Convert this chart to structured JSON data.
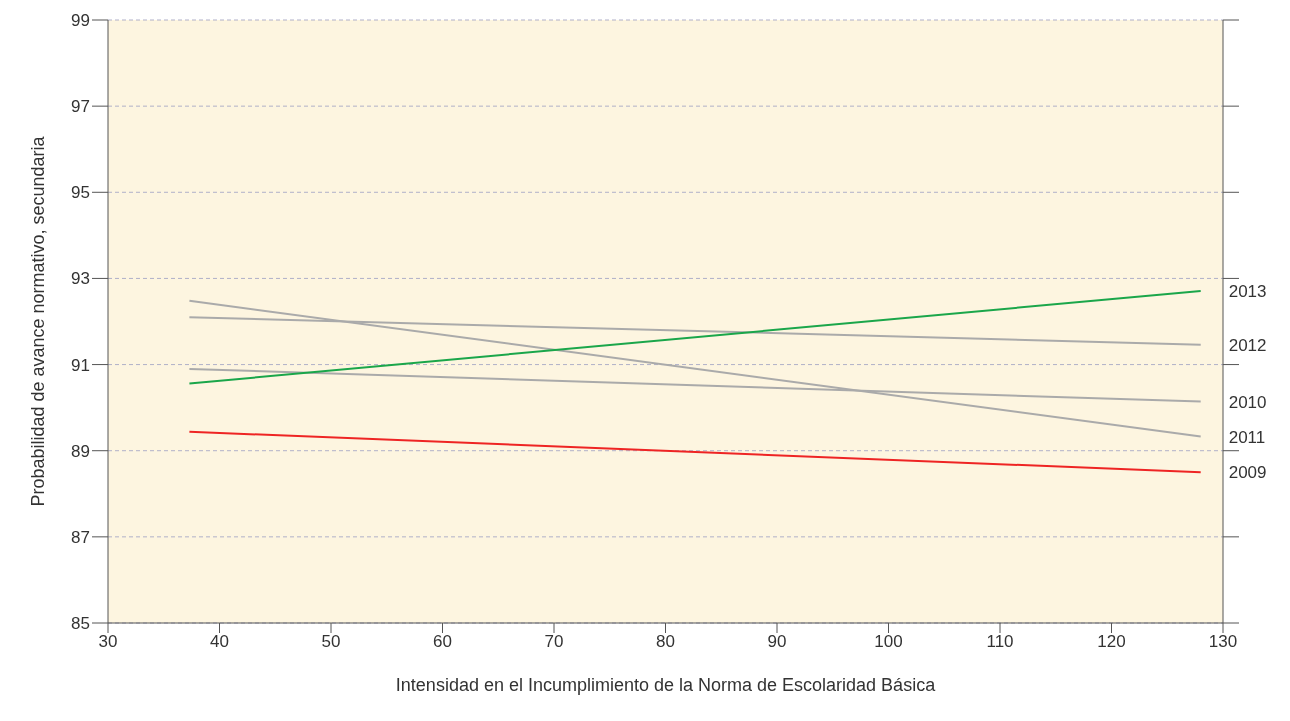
{
  "chart_data": {
    "type": "line",
    "xlabel": "Intensidad en el Incumplimiento de la Norma de Escolaridad Básica",
    "ylabel": "Probabilidad de avance normativo, secundaria",
    "xlim": [
      30,
      130
    ],
    "xticks": [
      30,
      40,
      50,
      60,
      70,
      80,
      90,
      100,
      110,
      120,
      130
    ],
    "ylim": [
      85,
      99
    ],
    "yticks": [
      85,
      87,
      89,
      91,
      93,
      95,
      97,
      99
    ],
    "grid": "y",
    "legend": false,
    "marker": "none",
    "line_style": "solid",
    "x": [
      37.3,
      128
    ],
    "series": [
      {
        "name": "2009",
        "color": "#ee2424",
        "values": [
          89.44,
          88.5
        ]
      },
      {
        "name": "2010",
        "color": "#aaaaaa",
        "values": [
          90.9,
          90.14
        ]
      },
      {
        "name": "2011",
        "color": "#aaaaaa",
        "values": [
          92.48,
          89.33
        ]
      },
      {
        "name": "2012",
        "color": "#aaaaaa",
        "values": [
          92.1,
          91.46
        ]
      },
      {
        "name": "2013",
        "color": "#1aa64a",
        "values": [
          90.56,
          92.71
        ]
      }
    ]
  }
}
